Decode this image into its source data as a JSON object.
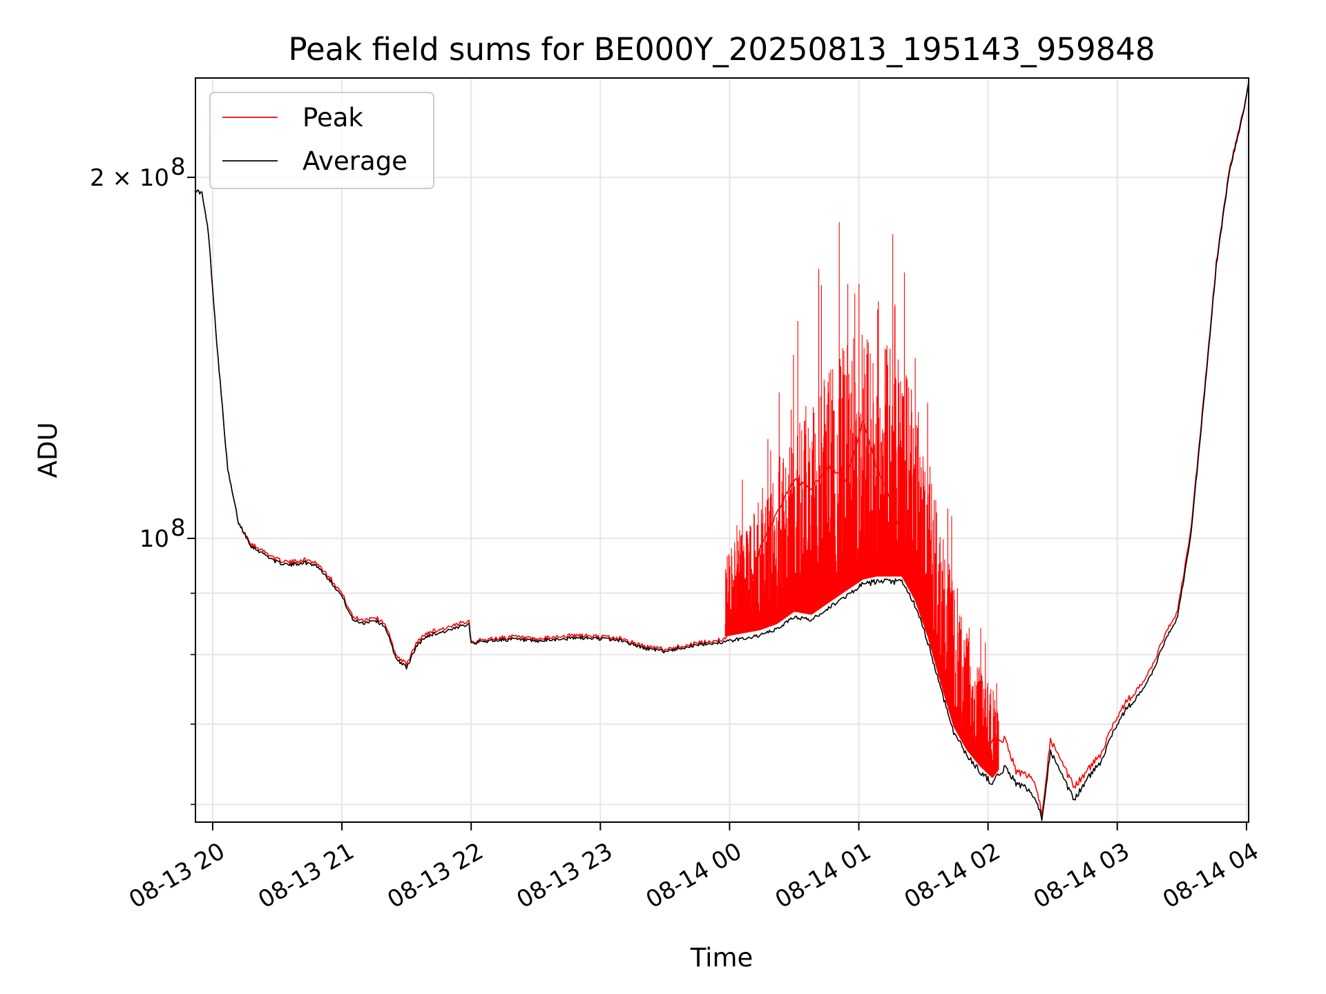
{
  "chart_data": {
    "type": "line",
    "title": "Peak field sums for BE000Y_20250813_195143_959848",
    "xlabel": "Time",
    "ylabel": "ADU",
    "y_scale": "log",
    "grid": true,
    "legend_position": "top-left",
    "x_range": [
      "08-13 19:52",
      "08-14 04:01"
    ],
    "ylim": [
      58000000,
      242000000
    ],
    "x_ticks": [
      "08-13 20",
      "08-13 21",
      "08-13 22",
      "08-13 23",
      "08-14 00",
      "08-14 01",
      "08-14 02",
      "08-14 03",
      "08-14 04"
    ],
    "y_major_ticks": [
      {
        "value": 100000000,
        "label_base": "10",
        "label_exp": "8"
      },
      {
        "value": 200000000,
        "label_base": "2 × 10",
        "label_exp": "8"
      }
    ],
    "y_minor_ticks": [
      60000000,
      70000000,
      80000000,
      90000000
    ],
    "colors": {
      "peak": "#ff0000",
      "average": "#000000",
      "grid": "#e6e6e6"
    },
    "series": [
      {
        "name": "Peak",
        "color": "#ff0000",
        "x": [
          "08-13 19:52",
          "08-13 19:55",
          "08-13 19:58",
          "08-13 20:02",
          "08-13 20:07",
          "08-13 20:12",
          "08-13 20:18",
          "08-13 20:24",
          "08-13 20:30",
          "08-13 20:36",
          "08-13 20:42",
          "08-13 20:48",
          "08-13 20:54",
          "08-13 21:00",
          "08-13 21:05",
          "08-13 21:10",
          "08-13 21:15",
          "08-13 21:20",
          "08-13 21:25",
          "08-13 21:30",
          "08-13 21:35",
          "08-13 21:40",
          "08-13 21:46",
          "08-13 21:52",
          "08-13 21:59",
          "08-13 22:00",
          "08-13 22:10",
          "08-13 22:20",
          "08-13 22:30",
          "08-13 22:40",
          "08-13 22:50",
          "08-13 23:00",
          "08-13 23:10",
          "08-13 23:20",
          "08-13 23:30",
          "08-13 23:40",
          "08-13 23:50",
          "08-13 23:58",
          "08-14 00:06",
          "08-14 00:14",
          "08-14 00:22",
          "08-14 00:30",
          "08-14 00:38",
          "08-14 00:46",
          "08-14 00:54",
          "08-14 01:02",
          "08-14 01:08",
          "08-14 01:14",
          "08-14 01:20",
          "08-14 01:26",
          "08-14 01:32",
          "08-14 01:38",
          "08-14 01:44",
          "08-14 01:50",
          "08-14 01:56",
          "08-14 02:02",
          "08-14 02:08",
          "08-14 02:13",
          "08-14 02:17",
          "08-14 02:21",
          "08-14 02:25",
          "08-14 02:29",
          "08-14 02:34",
          "08-14 02:40",
          "08-14 02:46",
          "08-14 02:52",
          "08-14 02:58",
          "08-14 03:04",
          "08-14 03:10",
          "08-14 03:16",
          "08-14 03:22",
          "08-14 03:28",
          "08-14 03:34",
          "08-14 03:40",
          "08-14 03:46",
          "08-14 03:52",
          "08-14 03:58",
          "08-14 04:01"
        ],
        "values": [
          195000000,
          194000000,
          180000000,
          145000000,
          114000000,
          103000000,
          99000000,
          97500000,
          96000000,
          95500000,
          96000000,
          95500000,
          93000000,
          90000000,
          86000000,
          85500000,
          86000000,
          85000000,
          80000000,
          78500000,
          82000000,
          83500000,
          84000000,
          84500000,
          85500000,
          82000000,
          82500000,
          82800000,
          82300000,
          82800000,
          83000000,
          82800000,
          82500000,
          81300000,
          80800000,
          81500000,
          82000000,
          82500000,
          85000000,
          98000000,
          105000000,
          112000000,
          110000000,
          115000000,
          112000000,
          125000000,
          115000000,
          108000000,
          100000000,
          92000000,
          84000000,
          77000000,
          71000000,
          68000000,
          66000000,
          68000000,
          68000000,
          64000000,
          63500000,
          63000000,
          59000000,
          68000000,
          65000000,
          62000000,
          64000000,
          66000000,
          70000000,
          73000000,
          75000000,
          78000000,
          83000000,
          87000000,
          101000000,
          130000000,
          170000000,
          203000000,
          225000000,
          240000000
        ]
      },
      {
        "name": "Average",
        "color": "#000000",
        "x": [
          "08-13 19:52",
          "08-13 19:55",
          "08-13 19:58",
          "08-13 20:02",
          "08-13 20:07",
          "08-13 20:12",
          "08-13 20:18",
          "08-13 20:24",
          "08-13 20:30",
          "08-13 20:36",
          "08-13 20:42",
          "08-13 20:48",
          "08-13 20:54",
          "08-13 21:00",
          "08-13 21:05",
          "08-13 21:10",
          "08-13 21:15",
          "08-13 21:20",
          "08-13 21:25",
          "08-13 21:30",
          "08-13 21:35",
          "08-13 21:40",
          "08-13 21:46",
          "08-13 21:52",
          "08-13 21:59",
          "08-13 22:00",
          "08-13 22:10",
          "08-13 22:20",
          "08-13 22:30",
          "08-13 22:40",
          "08-13 22:50",
          "08-13 23:00",
          "08-13 23:10",
          "08-13 23:20",
          "08-13 23:30",
          "08-13 23:40",
          "08-13 23:50",
          "08-13 23:58",
          "08-14 00:06",
          "08-14 00:14",
          "08-14 00:22",
          "08-14 00:30",
          "08-14 00:38",
          "08-14 00:46",
          "08-14 00:54",
          "08-14 01:02",
          "08-14 01:08",
          "08-14 01:14",
          "08-14 01:20",
          "08-14 01:26",
          "08-14 01:32",
          "08-14 01:38",
          "08-14 01:44",
          "08-14 01:50",
          "08-14 01:56",
          "08-14 02:02",
          "08-14 02:08",
          "08-14 02:13",
          "08-14 02:17",
          "08-14 02:21",
          "08-14 02:25",
          "08-14 02:29",
          "08-14 02:34",
          "08-14 02:40",
          "08-14 02:46",
          "08-14 02:52",
          "08-14 02:58",
          "08-14 03:04",
          "08-14 03:10",
          "08-14 03:16",
          "08-14 03:22",
          "08-14 03:28",
          "08-14 03:34",
          "08-14 03:40",
          "08-14 03:46",
          "08-14 03:52",
          "08-14 03:58",
          "08-14 04:01"
        ],
        "values": [
          195000000,
          194000000,
          180000000,
          145000000,
          114000000,
          103000000,
          98500000,
          97000000,
          95500000,
          95000000,
          95500000,
          95000000,
          92500000,
          89500000,
          85500000,
          85000000,
          85500000,
          84500000,
          79500000,
          78000000,
          81500000,
          83000000,
          83500000,
          84000000,
          85000000,
          81800000,
          82200000,
          82400000,
          82000000,
          82400000,
          82600000,
          82500000,
          82200000,
          81000000,
          80500000,
          81200000,
          81700000,
          82000000,
          82500000,
          83000000,
          84000000,
          86000000,
          85500000,
          87500000,
          89500000,
          91500000,
          92000000,
          92000000,
          92000000,
          88000000,
          82000000,
          75000000,
          69000000,
          66000000,
          64000000,
          62500000,
          64500000,
          62500000,
          62000000,
          61000000,
          58500000,
          66500000,
          63500000,
          60500000,
          63000000,
          65000000,
          69000000,
          72000000,
          74000000,
          77000000,
          82000000,
          86000000,
          100000000,
          129000000,
          169000000,
          202000000,
          224000000,
          240000000
        ]
      }
    ]
  }
}
